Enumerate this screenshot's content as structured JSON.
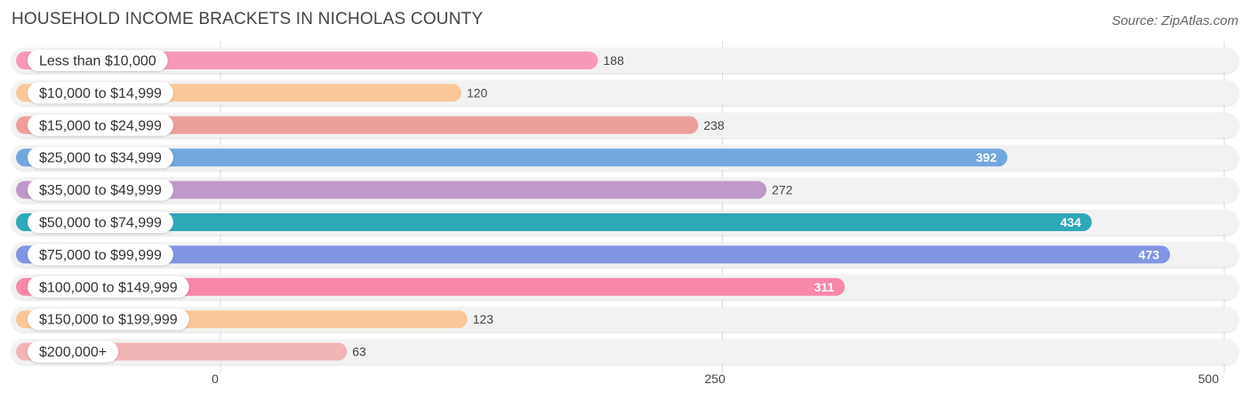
{
  "header": {
    "title": "HOUSEHOLD INCOME BRACKETS IN NICHOLAS COUNTY",
    "source": "Source: ZipAtlas.com"
  },
  "chart_data": {
    "type": "bar",
    "orientation": "horizontal",
    "title": "HOUSEHOLD INCOME BRACKETS IN NICHOLAS COUNTY",
    "categories": [
      "Less than $10,000",
      "$10,000 to $14,999",
      "$15,000 to $24,999",
      "$25,000 to $34,999",
      "$35,000 to $49,999",
      "$50,000 to $74,999",
      "$75,000 to $99,999",
      "$100,000 to $149,999",
      "$150,000 to $199,999",
      "$200,000+"
    ],
    "values": [
      188,
      120,
      238,
      392,
      272,
      434,
      473,
      311,
      123,
      63
    ],
    "value_labels": [
      "188",
      "120",
      "238",
      "392",
      "272",
      "434",
      "473",
      "311",
      "123",
      "63"
    ],
    "colors": [
      "#f799b6",
      "#fac898",
      "#eda09b",
      "#72a7e0",
      "#bf99c9",
      "#2fa8b8",
      "#8195e3",
      "#f788aa",
      "#fac898",
      "#f2b5b6"
    ],
    "xlim": [
      0,
      500
    ],
    "xticks": [
      0,
      250,
      500
    ],
    "xtick_labels": [
      "0",
      "250",
      "500"
    ],
    "grid": true,
    "legend": "none"
  }
}
